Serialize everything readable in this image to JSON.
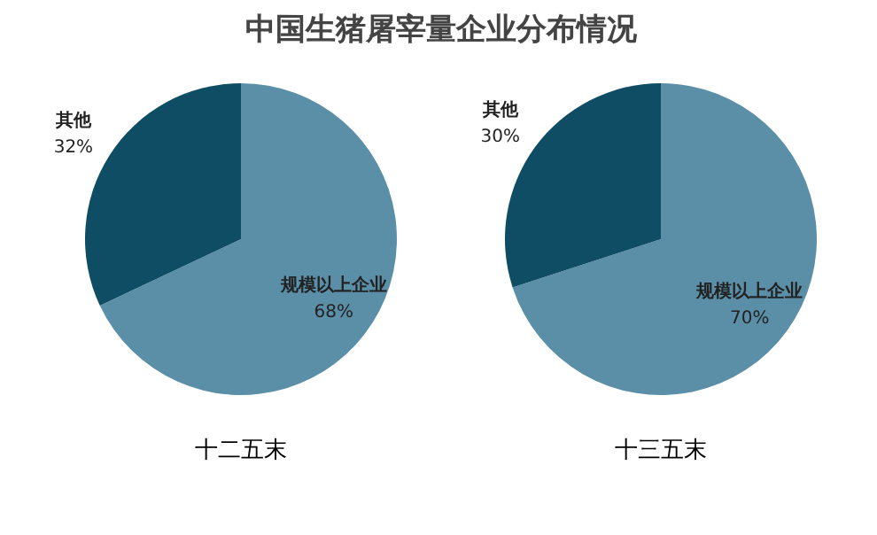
{
  "chart_data": [
    {
      "type": "pie",
      "title": "中国生猪屠宰量企业分布情况",
      "categories": [
        "规模以上企业",
        "其他"
      ],
      "values": [
        68,
        32
      ],
      "colors": [
        "#5b8fa8",
        "#0e4d64"
      ],
      "value_labels": [
        "68%",
        "32%"
      ],
      "annotations": [
        "十二五末"
      ],
      "legend": false
    },
    {
      "type": "pie",
      "categories": [
        "规模以上企业",
        "其他"
      ],
      "values": [
        70,
        30
      ],
      "colors": [
        "#5b8fa8",
        "#0e4d64"
      ],
      "value_labels": [
        "70%",
        "30%"
      ],
      "annotations": [
        "十三五末"
      ],
      "legend": false
    }
  ]
}
